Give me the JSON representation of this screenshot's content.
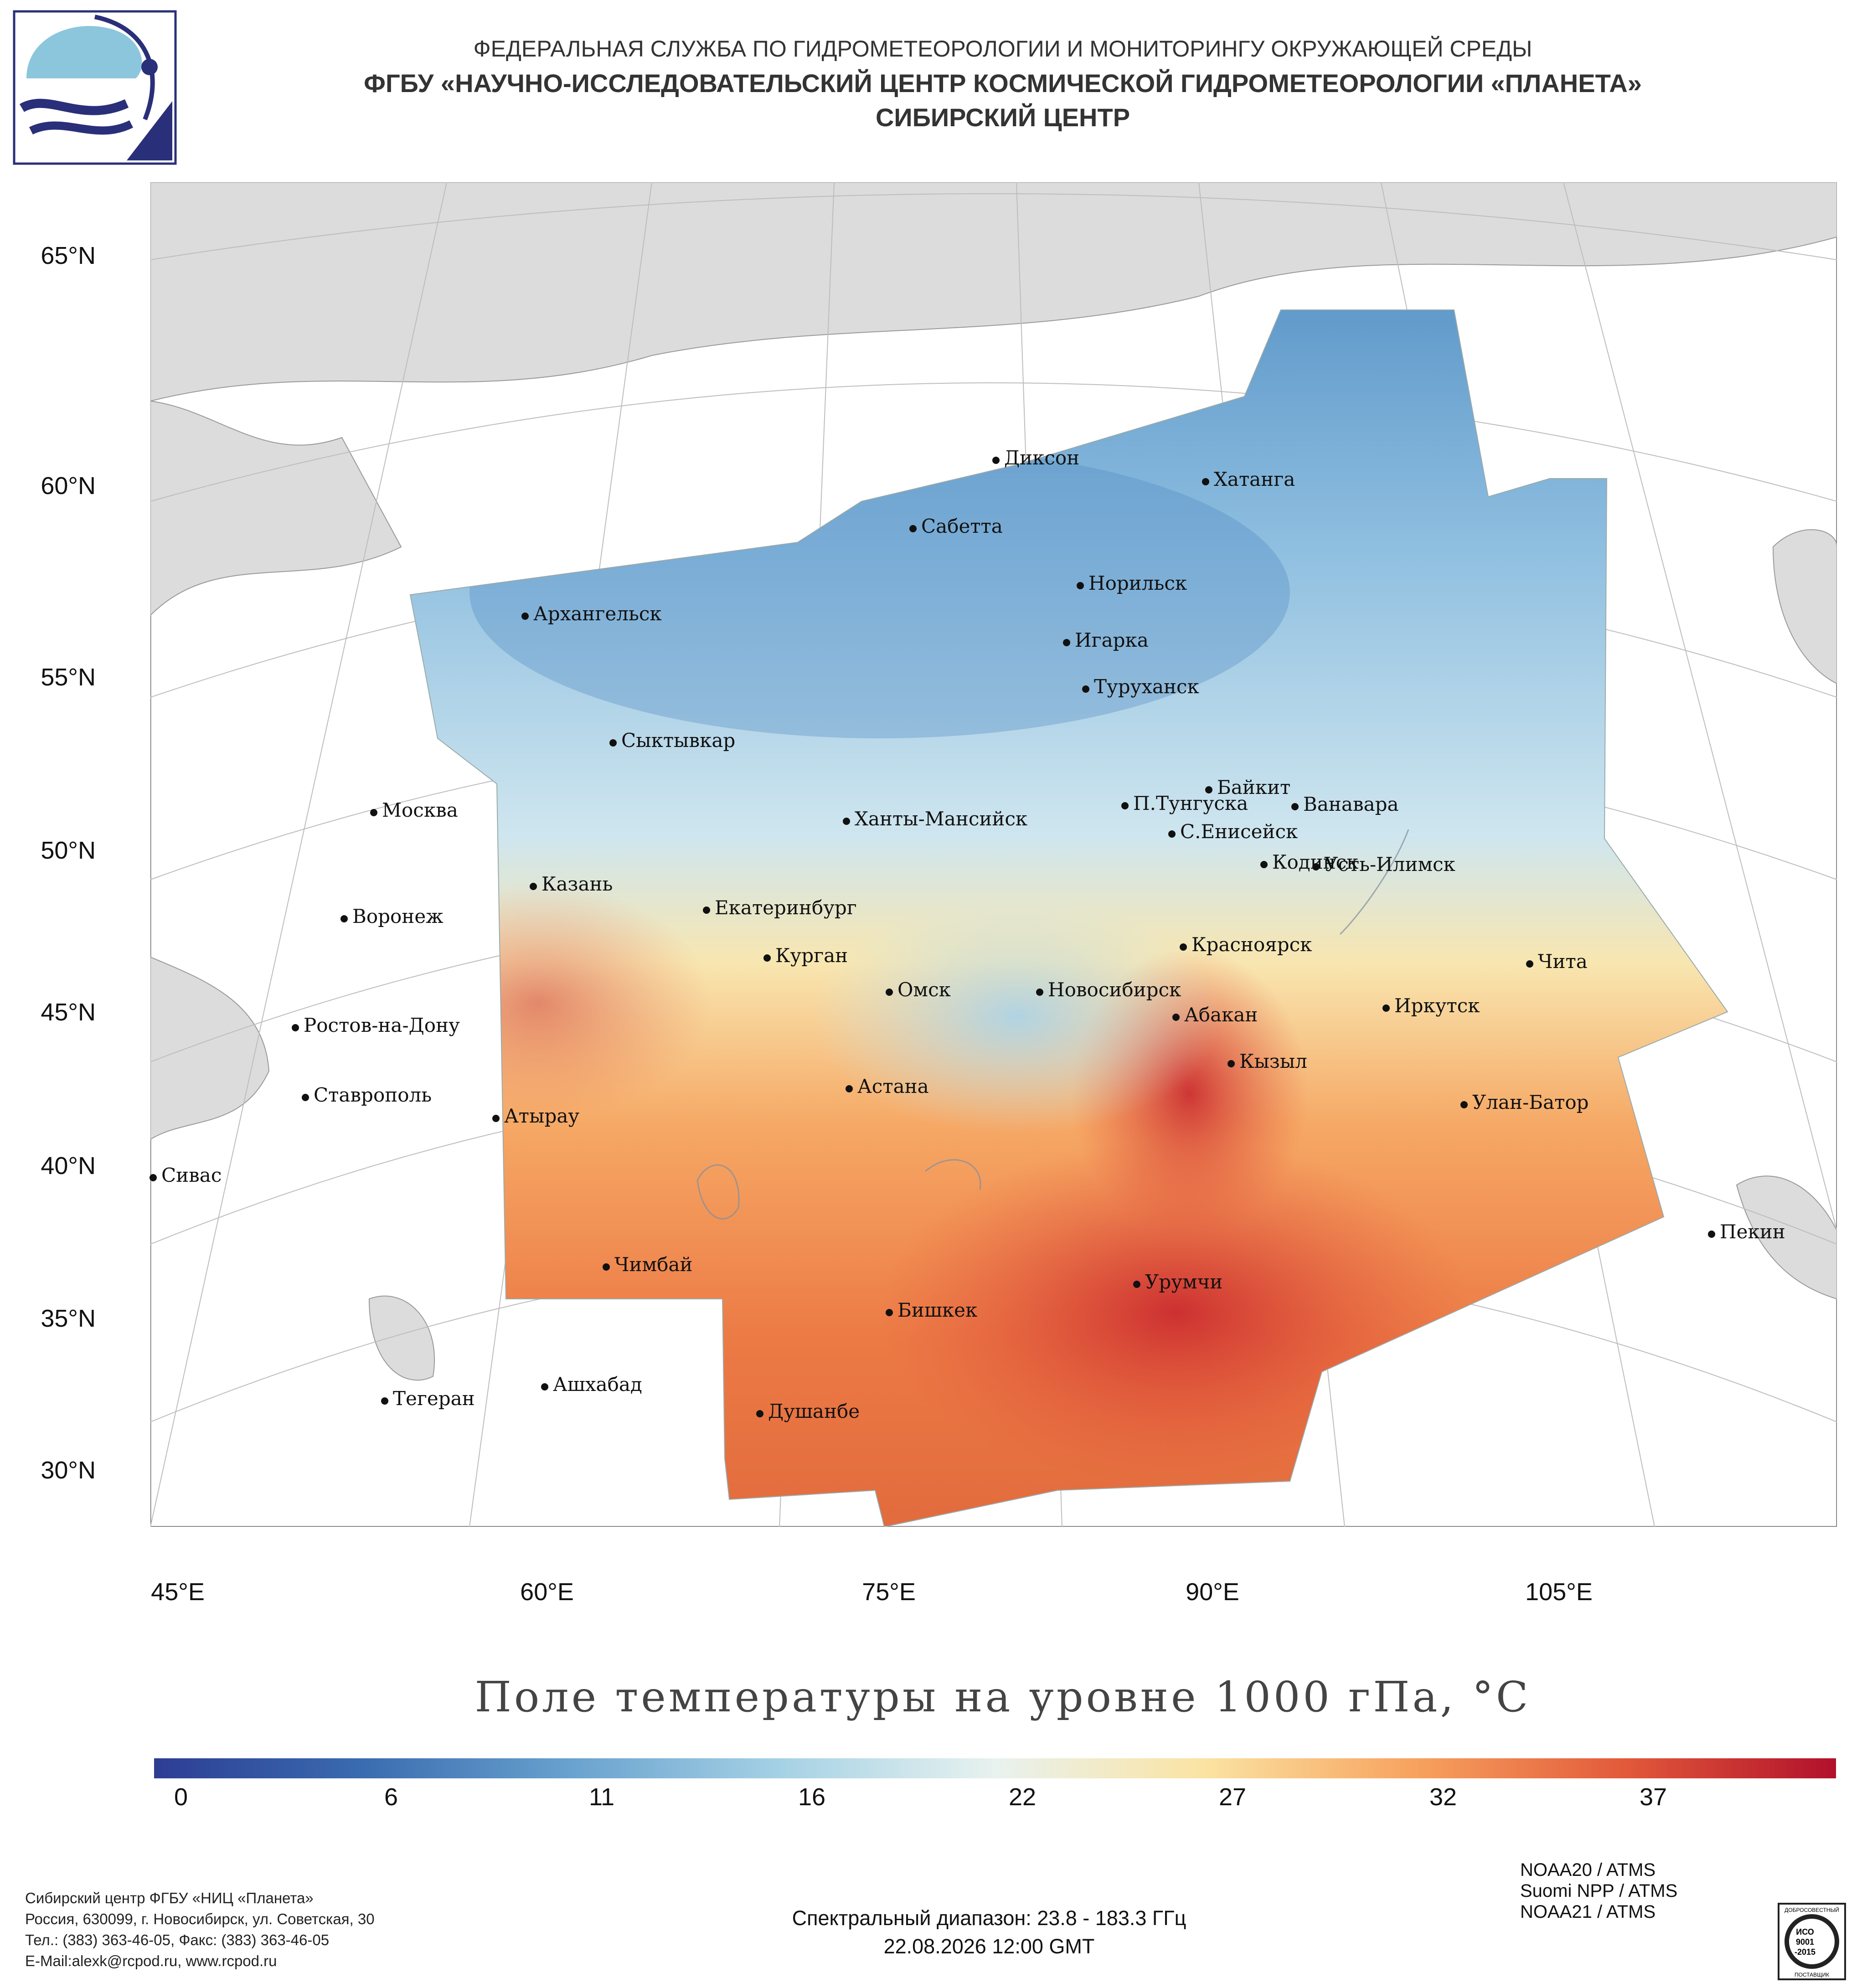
{
  "header": {
    "line1": "ФЕДЕРАЛЬНАЯ СЛУЖБА ПО ГИДРОМЕТЕОРОЛОГИИ И МОНИТОРИНГУ ОКРУЖАЮЩЕЙ СРЕДЫ",
    "line2": "ФГБУ «НАУЧНО-ИССЛЕДОВАТЕЛЬСКИЙ ЦЕНТР КОСМИЧЕСКОЙ ГИДРОМЕТЕОРОЛОГИИ «ПЛАНЕТА»",
    "line3": "СИБИРСКИЙ ЦЕНТР"
  },
  "map": {
    "lat_labels": [
      "65°N",
      "60°N",
      "55°N",
      "50°N",
      "45°N",
      "40°N",
      "35°N",
      "30°N"
    ],
    "lon_labels": [
      "45°E",
      "60°E",
      "75°E",
      "90°E",
      "105°E"
    ],
    "cities": [
      {
        "name": "Диксон"
      },
      {
        "name": "Хатанга"
      },
      {
        "name": "Сабетта"
      },
      {
        "name": "Норильск"
      },
      {
        "name": "Архангельск"
      },
      {
        "name": "Игарка"
      },
      {
        "name": "Туруханск"
      },
      {
        "name": "Сыктывкар"
      },
      {
        "name": "Байкит"
      },
      {
        "name": "П.Тунгуска"
      },
      {
        "name": "Ванавара"
      },
      {
        "name": "Москва"
      },
      {
        "name": "Ханты-Мансийск"
      },
      {
        "name": "С.Енисейск"
      },
      {
        "name": "Кодинск"
      },
      {
        "name": "Усть-Илимск"
      },
      {
        "name": "Казань"
      },
      {
        "name": "Екатеринбург"
      },
      {
        "name": "Воронеж"
      },
      {
        "name": "Курган"
      },
      {
        "name": "Красноярск"
      },
      {
        "name": "Чита"
      },
      {
        "name": "Омск"
      },
      {
        "name": "Новосибирск"
      },
      {
        "name": "Иркутск"
      },
      {
        "name": "Ростов-на-Дону"
      },
      {
        "name": "Абакан"
      },
      {
        "name": "Кызыл"
      },
      {
        "name": "Астана"
      },
      {
        "name": "Ставрополь"
      },
      {
        "name": "Улан-Батор"
      },
      {
        "name": "Атырау"
      },
      {
        "name": "Сивас"
      },
      {
        "name": "Пекин"
      },
      {
        "name": "Чимбай"
      },
      {
        "name": "Урумчи"
      },
      {
        "name": "Бишкек"
      },
      {
        "name": "Ашхабад"
      },
      {
        "name": "Тегеран"
      },
      {
        "name": "Душанбе"
      }
    ]
  },
  "chart_title": "Поле температуры на уровне 1000 гПа, °С",
  "colorbar": {
    "min": 0,
    "max": 40,
    "tick_labels": [
      "0",
      "6",
      "11",
      "16",
      "22",
      "27",
      "32",
      "37"
    ],
    "colors": [
      "#2d3d94",
      "#3a6cb0",
      "#6aa3cf",
      "#a7d2e5",
      "#e8f2ef",
      "#fbe3a2",
      "#f7a25e",
      "#e2593a",
      "#b1102b"
    ]
  },
  "footer": {
    "org": "Сибирский центр ФГБУ «НИЦ «Планета»",
    "address": "Россия, 630099, г. Новосибирск, ул. Советская, 30",
    "phone": "Тел.: (383) 363-46-05, Факс: (383) 363-46-05",
    "email": "E-Mail:alexk@rcpod.ru, www.rcpod.ru"
  },
  "spectral_range": "Спектральный диапазон: 23.8 - 183.3 ГГц",
  "datetime": "22.08.2026 12:00 GMT",
  "sensors": [
    "NOAA20 / ATMS",
    "Suomi NPP / ATMS",
    "NOAA21 / ATMS"
  ],
  "iso_badge": {
    "top": "ДОБРОСОВЕСТНЫЙ",
    "line1": "ИСО",
    "line2": "9001",
    "line3": "-2015",
    "bottom": "ПОСТАВЩИК"
  }
}
